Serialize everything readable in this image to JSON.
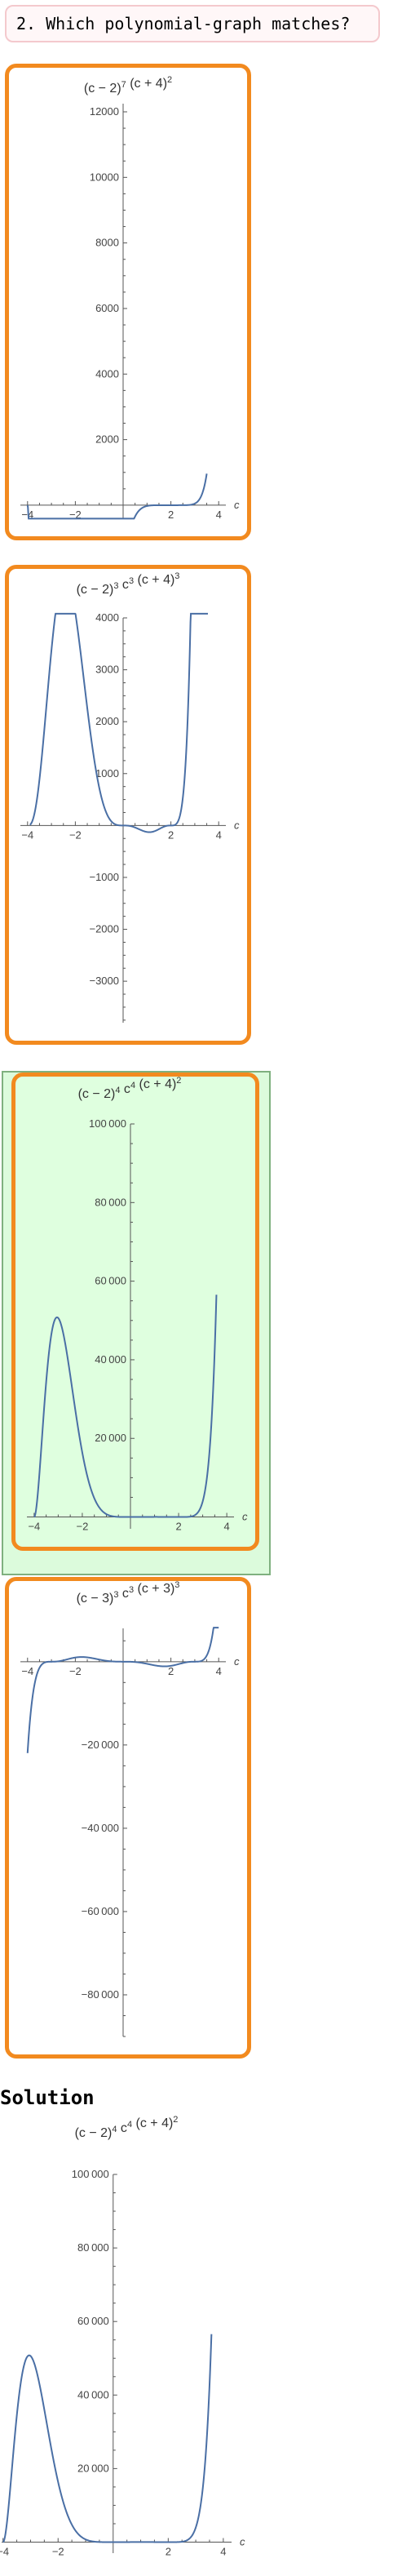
{
  "question": {
    "text": "2. Which polynomial-graph matches?"
  },
  "options": [
    {
      "id": "A",
      "chart_data": {
        "type": "line",
        "title": "(c−2)^7 (c+4)^2",
        "title_parts": [
          [
            "(c − 2)",
            ""
          ],
          [
            "7",
            "sup"
          ],
          [
            " (c + 4)",
            ""
          ],
          [
            "2",
            "sup"
          ]
        ],
        "xlabel": "c",
        "xlim": [
          -4.3,
          4.3
        ],
        "ylim": [
          -400,
          12000
        ],
        "xticks": [
          -4,
          -2,
          2,
          4
        ],
        "yticks": [
          2000,
          4000,
          6000,
          8000,
          10000,
          12000
        ],
        "ytick_labels": [
          "2000",
          "4000",
          "6000",
          "8000",
          "10000",
          "12000"
        ],
        "series": [
          {
            "expr": "(c-2)^7 (c+4)^2",
            "domain": [
              -4,
              3.5
            ],
            "color": "#4a6fa5"
          }
        ],
        "selected": false
      }
    },
    {
      "id": "B",
      "chart_data": {
        "type": "line",
        "title": "(c−2)^3 c^3 (c+4)^3",
        "title_parts": [
          [
            "(c − 2)",
            ""
          ],
          [
            "3",
            "sup"
          ],
          [
            " c",
            ""
          ],
          [
            "3",
            "sup"
          ],
          [
            " (c + 4)",
            ""
          ],
          [
            "3",
            "sup"
          ]
        ],
        "xlabel": "c",
        "xlim": [
          -4.3,
          4.3
        ],
        "ylim": [
          -3800,
          4000
        ],
        "xticks": [
          -4,
          -2,
          2,
          4
        ],
        "yticks": [
          -3000,
          -2000,
          -1000,
          1000,
          2000,
          3000,
          4000
        ],
        "ytick_labels": [
          "−3000",
          "−2000",
          "−1000",
          "1000",
          "2000",
          "3000",
          "4000"
        ],
        "series": [
          {
            "expr": "(c-2)^3 c^3 (c+4)^3",
            "domain": [
              -3.9,
              3.55
            ],
            "color": "#4a6fa5"
          }
        ],
        "selected": false
      }
    },
    {
      "id": "C",
      "chart_data": {
        "type": "line",
        "title": "(c−2)^4 c^4 (c+4)^2",
        "title_parts": [
          [
            "(c − 2)",
            ""
          ],
          [
            "4",
            "sup"
          ],
          [
            " c",
            ""
          ],
          [
            "4",
            "sup"
          ],
          [
            " (c + 4)",
            ""
          ],
          [
            "2",
            "sup"
          ]
        ],
        "xlabel": "c",
        "xlim": [
          -4.3,
          4.3
        ],
        "ylim": [
          -3000,
          100000
        ],
        "xticks": [
          -4,
          -2,
          2,
          4
        ],
        "yticks": [
          20000,
          40000,
          60000,
          80000,
          100000
        ],
        "ytick_labels": [
          "20 000",
          "40 000",
          "60 000",
          "80 000",
          "100 000"
        ],
        "series": [
          {
            "expr": "(c-2)^4 c^4 (c+4)^2",
            "domain": [
              -4,
              3.57
            ],
            "color": "#4a6fa5"
          }
        ],
        "selected": true
      }
    },
    {
      "id": "D",
      "chart_data": {
        "type": "line",
        "title": "(c−3)^3 c^3 (c+3)^3",
        "title_parts": [
          [
            "(c − 3)",
            ""
          ],
          [
            "3",
            "sup"
          ],
          [
            " c",
            ""
          ],
          [
            "3",
            "sup"
          ],
          [
            " (c + 3)",
            ""
          ],
          [
            "3",
            "sup"
          ]
        ],
        "xlabel": "c",
        "xlim": [
          -4.3,
          4.3
        ],
        "ylim": [
          -90000,
          8000
        ],
        "xticks": [
          -4,
          -2,
          2,
          4
        ],
        "yticks": [
          -80000,
          -60000,
          -40000,
          -20000
        ],
        "ytick_labels": [
          "−80 000",
          "−60 000",
          "−40 000",
          "−20 000"
        ],
        "series": [
          {
            "expr": "(c-3)^3 c^3 (c+3)^3",
            "domain": [
              -4,
              4
            ],
            "color": "#4a6fa5"
          }
        ],
        "selected": false
      }
    }
  ],
  "solution": {
    "title": "Solution",
    "chart_data": {
      "type": "line",
      "title": "(c−2)^4 c^4 (c+4)^2",
      "title_parts": [
        [
          "(c − 2)",
          ""
        ],
        [
          "4",
          "sup"
        ],
        [
          " c",
          ""
        ],
        [
          "4",
          "sup"
        ],
        [
          " (c + 4)",
          ""
        ],
        [
          "2",
          "sup"
        ]
      ],
      "xlabel": "c",
      "xlim": [
        -4.05,
        4.3
      ],
      "ylim": [
        -3000,
        100000
      ],
      "xticks": [
        -4,
        -2,
        2,
        4
      ],
      "yticks": [
        20000,
        40000,
        60000,
        80000,
        100000
      ],
      "ytick_labels": [
        "20 000",
        "40 000",
        "60 000",
        "80 000",
        "100 000"
      ],
      "series": [
        {
          "expr": "(c-2)^4 c^4 (c+4)^2",
          "domain": [
            -4,
            3.57
          ],
          "color": "#4a6fa5"
        }
      ]
    }
  }
}
